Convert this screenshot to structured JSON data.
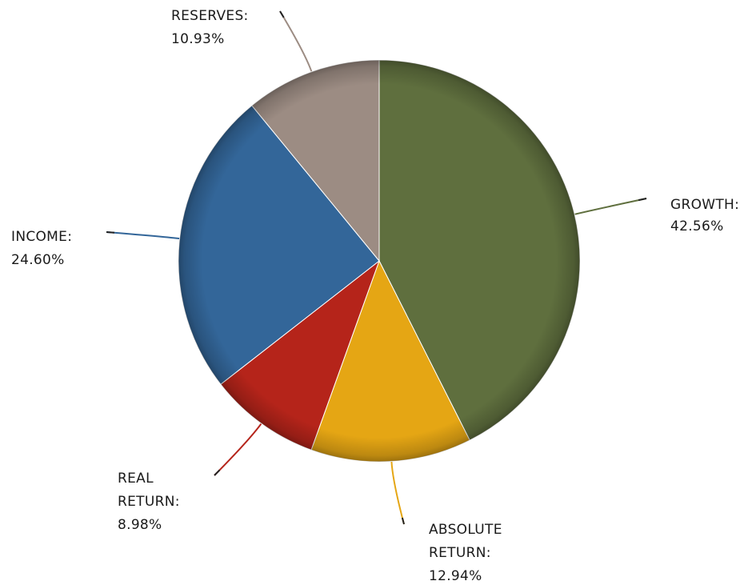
{
  "chart_data": {
    "type": "pie",
    "title": "",
    "slices": [
      {
        "label": "GROWTH:",
        "value": 42.56,
        "value_label": "42.56%",
        "color": "#5f6f3e",
        "leader_color": "#5f6f3e"
      },
      {
        "label": "ABSOLUTE RETURN:",
        "value": 12.94,
        "value_label": "12.94%",
        "color": "#e5a614",
        "leader_color": "#e5a614"
      },
      {
        "label": "REAL RETURN:",
        "value": 8.98,
        "value_label": "8.98%",
        "color": "#b5241a",
        "leader_color": "#b5241a"
      },
      {
        "label": "INCOME:",
        "value": 24.6,
        "value_label": "24.60%",
        "color": "#336699",
        "leader_color": "#336699"
      },
      {
        "label": "RESERVES:",
        "value": 10.93,
        "value_label": "10.93%",
        "color": "#9c8c83",
        "leader_color": "#9c8c83"
      }
    ],
    "start_angle": "12 o'clock",
    "direction": "clockwise",
    "legend": "none"
  }
}
